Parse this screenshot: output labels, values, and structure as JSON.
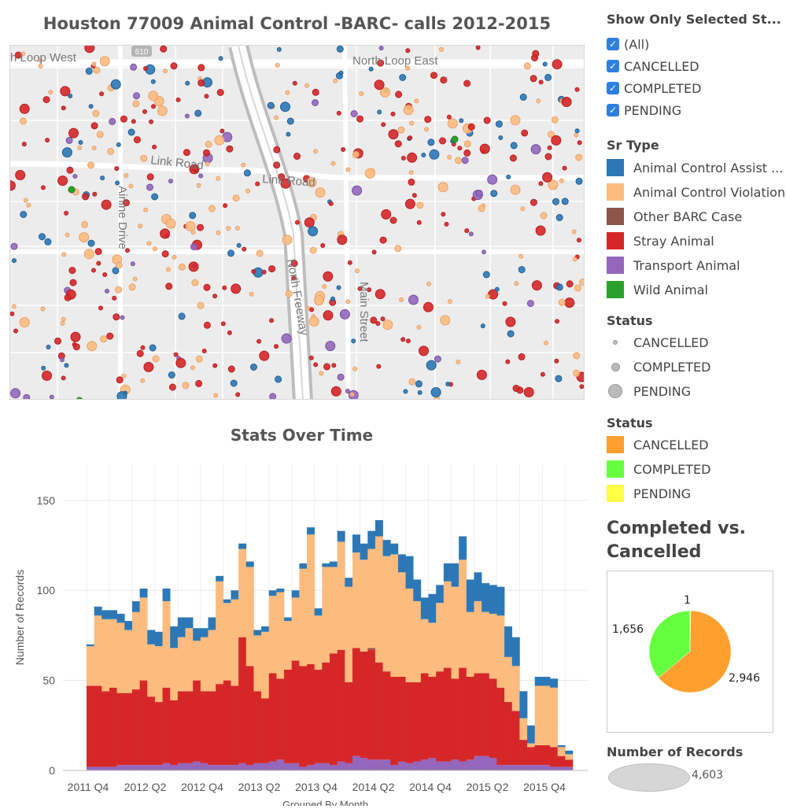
{
  "map": {
    "title": "Houston 77009 Animal Control -BARC- calls 2012-2015",
    "road_labels": [
      "h Loop West",
      "North Loop East",
      "Link Road",
      "Link Road",
      "Airline Drive",
      "North Freeway",
      "Main Street",
      "610"
    ]
  },
  "filters": {
    "title": "Show Only Selected St...",
    "items": [
      "(All)",
      "CANCELLED",
      "COMPLETED",
      "PENDING"
    ]
  },
  "sr_type": {
    "title": "Sr Type",
    "items": [
      {
        "label": "Animal Control Assist ...",
        "color": "#2c78b7"
      },
      {
        "label": "Animal Control Violation",
        "color": "#fdbb7e"
      },
      {
        "label": "Other BARC Case",
        "color": "#8c564b"
      },
      {
        "label": "Stray Animal",
        "color": "#d62728"
      },
      {
        "label": "Transport Animal",
        "color": "#9467bd"
      },
      {
        "label": "Wild Animal",
        "color": "#2ca02c"
      }
    ]
  },
  "status_size": {
    "title": "Status",
    "items": [
      "CANCELLED",
      "COMPLETED",
      "PENDING"
    ]
  },
  "status_color": {
    "title": "Status",
    "items": [
      {
        "label": "CANCELLED",
        "color": "#ff9f2e"
      },
      {
        "label": "COMPLETED",
        "color": "#66ff3f"
      },
      {
        "label": "PENDING",
        "color": "#ffff44"
      }
    ]
  },
  "completed_vs_cancelled": {
    "title": "Completed vs. Cancelled",
    "labels": {
      "pending": "1",
      "completed": "1,656",
      "cancelled": "2,946"
    }
  },
  "number_of_records": {
    "title": "Number of Records",
    "value": "4,603"
  },
  "chart_data": [
    {
      "type": "bar",
      "title": "Stats Over Time",
      "xlabel": "Grouped By Month",
      "ylabel": "Number of Records",
      "ylim": [
        0,
        170
      ],
      "yticks": [
        0,
        50,
        100,
        150
      ],
      "x_tick_labels": [
        "2011 Q4",
        "2012 Q2",
        "2012 Q4",
        "2013 Q2",
        "2013 Q4",
        "2014 Q2",
        "2014 Q4",
        "2015 Q2",
        "2015 Q4"
      ],
      "start_month": "2011-11",
      "stack_order": [
        "Transport Animal",
        "Stray Animal",
        "Other BARC Case",
        "Animal Control Violation",
        "Animal Control Assist ..."
      ],
      "series": [
        {
          "name": "Transport Animal",
          "color": "#9467bd",
          "values": [
            2,
            2,
            2,
            2,
            3,
            3,
            3,
            3,
            3,
            3,
            4,
            3,
            4,
            4,
            5,
            4,
            3,
            3,
            3,
            3,
            4,
            3,
            4,
            4,
            5,
            6,
            4,
            4,
            2,
            3,
            4,
            4,
            3,
            5,
            4,
            8,
            7,
            6,
            6,
            6,
            3,
            5,
            4,
            5,
            6,
            7,
            5,
            5,
            6,
            5,
            6,
            8,
            8,
            7,
            3,
            3,
            3,
            3,
            3,
            3,
            3,
            2,
            2,
            2
          ]
        },
        {
          "name": "Stray Animal",
          "color": "#d62728",
          "values": [
            45,
            45,
            42,
            44,
            40,
            40,
            42,
            47,
            38,
            35,
            42,
            36,
            40,
            40,
            45,
            40,
            41,
            45,
            47,
            44,
            70,
            55,
            40,
            36,
            49,
            45,
            52,
            57,
            56,
            56,
            52,
            56,
            62,
            62,
            45,
            60,
            59,
            61,
            54,
            49,
            49,
            47,
            45,
            44,
            48,
            45,
            50,
            52,
            45,
            52,
            46,
            46,
            46,
            44,
            43,
            35,
            30,
            14,
            10,
            11,
            11,
            11,
            6,
            4
          ]
        },
        {
          "name": "Other BARC Case",
          "color": "#8c564b",
          "values": [
            0,
            0,
            0,
            0,
            0,
            0,
            0,
            0,
            0,
            0,
            0,
            0,
            0,
            0,
            0,
            0,
            0,
            0,
            0,
            0,
            0,
            0,
            0,
            0,
            0,
            0,
            0,
            0,
            0,
            0,
            0,
            0,
            0,
            0,
            0,
            0,
            0,
            1,
            0,
            0,
            0,
            0,
            0,
            0,
            0,
            0,
            0,
            0,
            0,
            0,
            0,
            0,
            0,
            0,
            0,
            0,
            0,
            0,
            0,
            0,
            0,
            0,
            0,
            0
          ]
        },
        {
          "name": "Animal Control Violation",
          "color": "#fdbb7e",
          "values": [
            22,
            39,
            40,
            38,
            39,
            35,
            43,
            46,
            29,
            31,
            48,
            29,
            30,
            35,
            22,
            30,
            34,
            57,
            43,
            48,
            49,
            55,
            31,
            37,
            43,
            48,
            27,
            35,
            54,
            72,
            30,
            53,
            48,
            60,
            53,
            53,
            51,
            55,
            70,
            64,
            68,
            58,
            52,
            45,
            30,
            30,
            38,
            48,
            51,
            60,
            36,
            40,
            34,
            36,
            40,
            25,
            25,
            12,
            2,
            33,
            33,
            33,
            5,
            3
          ]
        },
        {
          "name": "Animal Control Assist ...",
          "color": "#2c78b7",
          "values": [
            1,
            5,
            5,
            5,
            5,
            5,
            6,
            5,
            8,
            8,
            7,
            12,
            11,
            6,
            7,
            5,
            7,
            3,
            2,
            5,
            3,
            3,
            3,
            3,
            3,
            2,
            2,
            4,
            3,
            4,
            4,
            2,
            3,
            6,
            5,
            10,
            9,
            10,
            9,
            9,
            6,
            10,
            18,
            12,
            12,
            16,
            10,
            10,
            13,
            13,
            18,
            16,
            16,
            16,
            16,
            17,
            16,
            15,
            10,
            5,
            5,
            5,
            1,
            2
          ]
        }
      ]
    },
    {
      "type": "pie",
      "title": "Completed vs. Cancelled",
      "categories": [
        "CANCELLED",
        "COMPLETED",
        "PENDING"
      ],
      "values": [
        2946,
        1656,
        1
      ],
      "colors": [
        "#ff9f2e",
        "#66ff3f",
        "#ffff44"
      ]
    }
  ]
}
